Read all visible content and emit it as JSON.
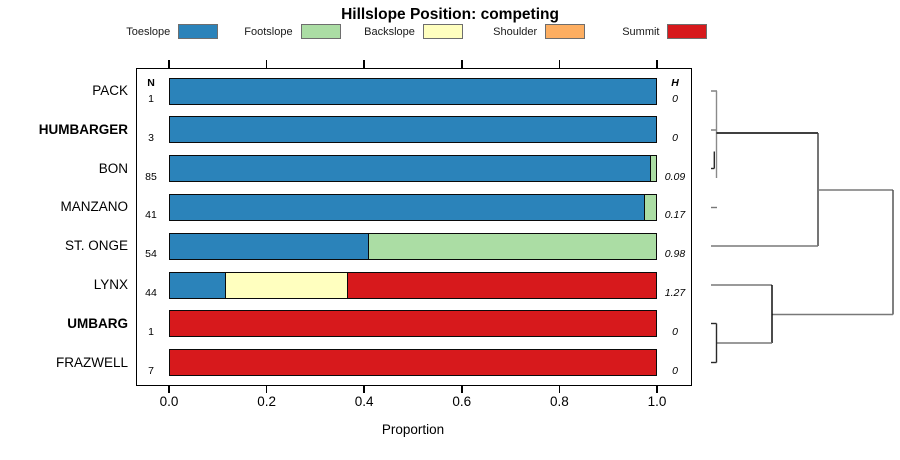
{
  "chart_data": {
    "type": "bar",
    "variant": "horizontal-stacked-proportions-with-dendrogram",
    "title": "Hillslope Position: competing",
    "xlabel": "Proportion",
    "xlim": [
      0,
      1
    ],
    "x_ticks": [
      0.0,
      0.2,
      0.4,
      0.6,
      0.8,
      1.0
    ],
    "x_tick_labels": [
      "0.0",
      "0.2",
      "0.4",
      "0.6",
      "0.8",
      "1.0"
    ],
    "grid": false,
    "legend_position": "top",
    "categories": [
      "Toeslope",
      "Footslope",
      "Backslope",
      "Shoulder",
      "Summit"
    ],
    "palette": {
      "Toeslope": "#2B83BA",
      "Footslope": "#ABDDA4",
      "Backslope": "#FFFFBF",
      "Shoulder": "#FDAE61",
      "Summit": "#D7191C"
    },
    "column_headers": {
      "n": "N",
      "h": "H"
    },
    "rows": [
      {
        "label": "PACK",
        "bold": false,
        "n": "1",
        "h": "0",
        "segments": [
          [
            "Toeslope",
            1.0
          ]
        ]
      },
      {
        "label": "HUMBARGER",
        "bold": true,
        "n": "3",
        "h": "0",
        "segments": [
          [
            "Toeslope",
            1.0
          ]
        ]
      },
      {
        "label": "BON",
        "bold": false,
        "n": "85",
        "h": "0.09",
        "segments": [
          [
            "Toeslope",
            0.988
          ],
          [
            "Footslope",
            0.012
          ]
        ]
      },
      {
        "label": "MANZANO",
        "bold": false,
        "n": "41",
        "h": "0.17",
        "segments": [
          [
            "Toeslope",
            0.976
          ],
          [
            "Footslope",
            0.024
          ]
        ]
      },
      {
        "label": "ST. ONGE",
        "bold": false,
        "n": "54",
        "h": "0.98",
        "segments": [
          [
            "Toeslope",
            0.407
          ],
          [
            "Footslope",
            0.593
          ]
        ]
      },
      {
        "label": "LYNX",
        "bold": false,
        "n": "44",
        "h": "1.27",
        "segments": [
          [
            "Toeslope",
            0.114
          ],
          [
            "Backslope",
            0.25
          ],
          [
            "Summit",
            0.636
          ]
        ]
      },
      {
        "label": "UMBARG",
        "bold": true,
        "n": "1",
        "h": "0",
        "segments": [
          [
            "Summit",
            1.0
          ]
        ]
      },
      {
        "label": "FRAZWELL",
        "bold": false,
        "n": "7",
        "h": "0",
        "segments": [
          [
            "Summit",
            1.0
          ]
        ]
      }
    ],
    "dendrogram": {
      "side": "right",
      "segments": [
        [
          711,
          91,
          717,
          91,
          "#787878"
        ],
        [
          711,
          130,
          717,
          130,
          "#787878"
        ],
        [
          716.5,
          91,
          716.5,
          178,
          "#8a8a8a"
        ],
        [
          711,
          168.5,
          714.3,
          168.5,
          "#2a2a2a"
        ],
        [
          714.3,
          151.5,
          714.3,
          168.5,
          "#2a2a2a"
        ],
        [
          711,
          207.5,
          717,
          207.5,
          "#787878"
        ],
        [
          716.5,
          133,
          818,
          133,
          "#000000"
        ],
        [
          818,
          133,
          818,
          246,
          "#3a3a3a"
        ],
        [
          711,
          246,
          818,
          246,
          "#787878"
        ],
        [
          818,
          190,
          893,
          190,
          "#787878"
        ],
        [
          893,
          190,
          893,
          314.5,
          "#4a4a4a"
        ],
        [
          772,
          314.5,
          893,
          314.5,
          "#787878"
        ],
        [
          711,
          285,
          772,
          285,
          "#787878"
        ],
        [
          772,
          285,
          772,
          343,
          "#000000"
        ],
        [
          716.5,
          343,
          772,
          343,
          "#787878"
        ],
        [
          716.5,
          323.5,
          716.5,
          362.5,
          "#2a2a2a"
        ],
        [
          711,
          323.5,
          716.5,
          323.5,
          "#2a2a2a"
        ],
        [
          711,
          362.5,
          716.5,
          362.5,
          "#2a2a2a"
        ]
      ]
    }
  }
}
